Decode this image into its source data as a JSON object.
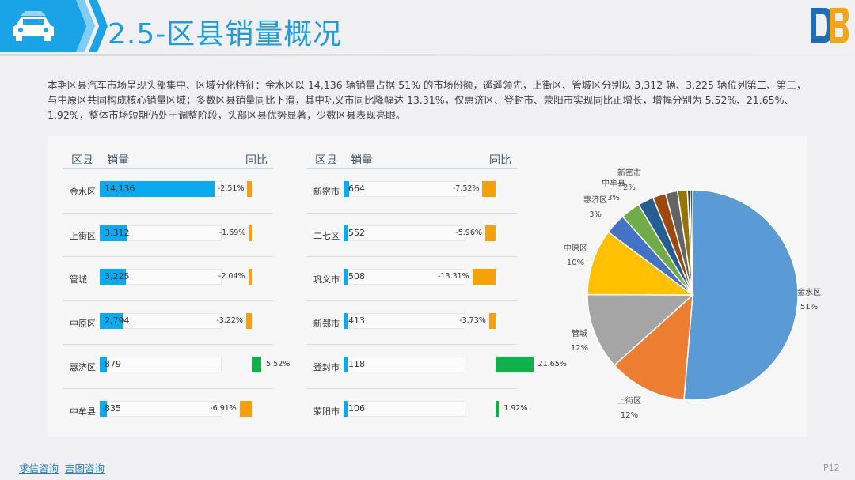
{
  "header": {
    "title": "2.5-区县销量概况"
  },
  "summary": "本期区县汽车市场呈现头部集中、区域分化特征：金水区以 14,136 辆销量占据 51% 的市场份额，遥遥领先，上街区、管城区分别以 3,312 辆、3,225 辆位列第二、第三，与中原区共同构成核心销量区域；多数区县销量同比下滑，其中巩义市同比降幅达 13.31%，仅惠济区、登封市、荥阳市实现同比正增长，增幅分别为 5.52%、21.65%、1.92%，整体市场短期仍处于调整阶段，头部区县优势显著，少数区县表现亮眼。",
  "table_headers": {
    "district": "区县",
    "sales": "销量",
    "yoy": "同比"
  },
  "colors": {
    "sales_bar": "#0aaaf0",
    "yoy_negative": "#f5a10a",
    "yoy_positive": "#12b04a",
    "title": "#1b9de0"
  },
  "left_table": [
    {
      "name": "金水区",
      "sales": "14,136",
      "sales_value": 14136,
      "yoy": "-2.51%",
      "yoy_value": -2.51
    },
    {
      "name": "上街区",
      "sales": "3,312",
      "sales_value": 3312,
      "yoy": "-1.69%",
      "yoy_value": -1.69
    },
    {
      "name": "管城",
      "sales": "3,225",
      "sales_value": 3225,
      "yoy": "-2.04%",
      "yoy_value": -2.04
    },
    {
      "name": "中原区",
      "sales": "2,794",
      "sales_value": 2794,
      "yoy": "-3.22%",
      "yoy_value": -3.22
    },
    {
      "name": "惠济区",
      "sales": "879",
      "sales_value": 879,
      "yoy": "5.52%",
      "yoy_value": 5.52
    },
    {
      "name": "中牟县",
      "sales": "835",
      "sales_value": 835,
      "yoy": "-6.91%",
      "yoy_value": -6.91
    }
  ],
  "right_table": [
    {
      "name": "新密市",
      "sales": "664",
      "sales_value": 664,
      "yoy": "-7.52%",
      "yoy_value": -7.52
    },
    {
      "name": "二七区",
      "sales": "552",
      "sales_value": 552,
      "yoy": "-5.96%",
      "yoy_value": -5.96
    },
    {
      "name": "巩义市",
      "sales": "508",
      "sales_value": 508,
      "yoy": "-13.31%",
      "yoy_value": -13.31
    },
    {
      "name": "新郑市",
      "sales": "413",
      "sales_value": 413,
      "yoy": "-3.73%",
      "yoy_value": -3.73
    },
    {
      "name": "登封市",
      "sales": "118",
      "sales_value": 118,
      "yoy": "21.65%",
      "yoy_value": 21.65
    },
    {
      "name": "荥阳市",
      "sales": "106",
      "sales_value": 106,
      "yoy": "1.92%",
      "yoy_value": 1.92
    }
  ],
  "chart_data": {
    "type": "pie",
    "slices": [
      {
        "name": "金水区",
        "value": 14136,
        "label": "51%",
        "color": "#5b9bd5"
      },
      {
        "name": "上街区",
        "value": 3312,
        "label": "12%",
        "color": "#ed7d31"
      },
      {
        "name": "管城",
        "value": 3225,
        "label": "12%",
        "color": "#a5a5a5"
      },
      {
        "name": "中原区",
        "value": 2794,
        "label": "10%",
        "color": "#ffc000"
      },
      {
        "name": "惠济区",
        "value": 879,
        "label": "3%",
        "color": "#4472c4"
      },
      {
        "name": "中牟县",
        "value": 835,
        "label": "3%",
        "color": "#70ad47"
      },
      {
        "name": "新密市",
        "value": 664,
        "label": "2%",
        "color": "#255e91"
      },
      {
        "name": "",
        "value": 552,
        "label": "",
        "color": "#9e480e"
      },
      {
        "name": "",
        "value": 508,
        "label": "",
        "color": "#636363"
      },
      {
        "name": "",
        "value": 413,
        "label": "",
        "color": "#997300"
      },
      {
        "name": "",
        "value": 118,
        "label": "",
        "color": "#264478"
      },
      {
        "name": "",
        "value": 106,
        "label": "",
        "color": "#43682b"
      }
    ]
  },
  "footer": {
    "link1": "求信咨询",
    "link2": "吉图咨询",
    "page": "P12"
  }
}
